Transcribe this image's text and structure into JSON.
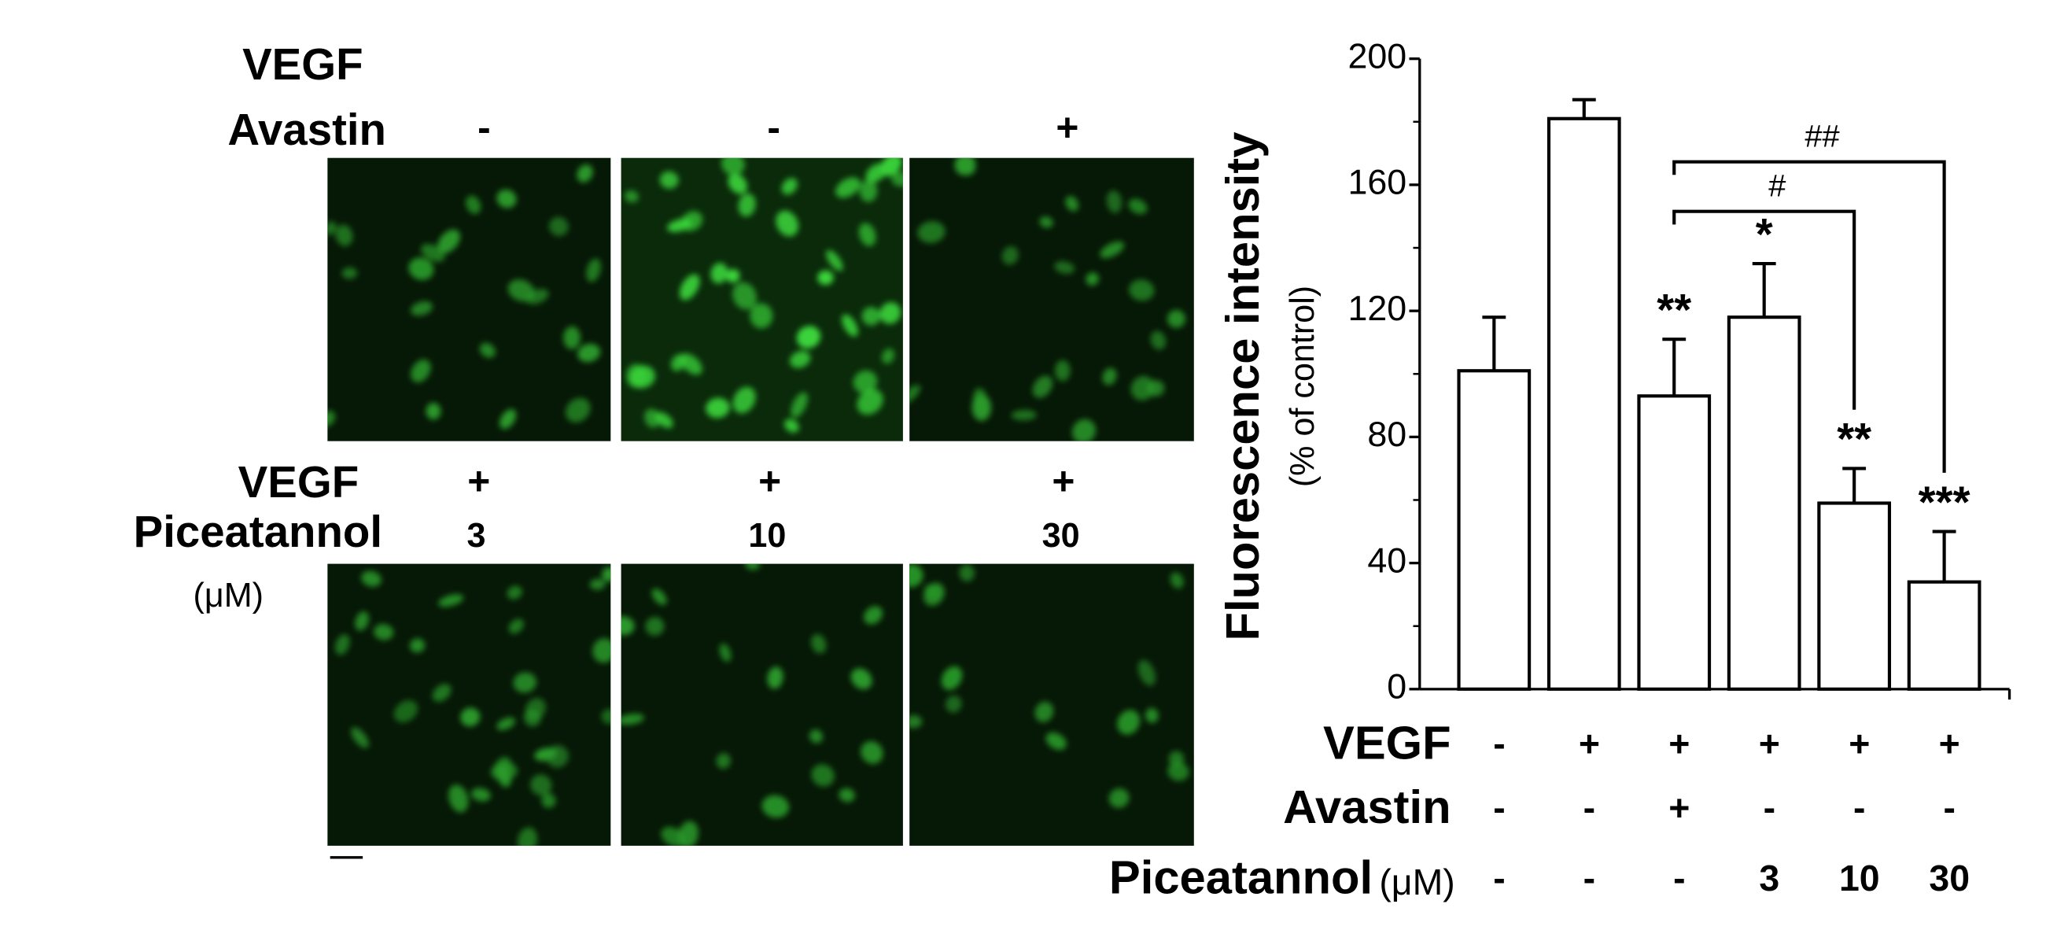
{
  "micrographs": {
    "top_rows": [
      {
        "label": "VEGF"
      },
      {
        "label": "Avastin",
        "values": [
          "-",
          "-",
          "+"
        ]
      }
    ],
    "bottom_rows": [
      {
        "label": "VEGF",
        "values": [
          "+",
          "+",
          "+"
        ]
      },
      {
        "label": "Piceatannol",
        "values": [
          "3",
          "10",
          "30"
        ]
      }
    ],
    "unit": "(μM)"
  },
  "chart_data": {
    "type": "bar",
    "ylabel": "Fluorescence intensity",
    "ylabel_sub": "(% of control)",
    "values": [
      101,
      181,
      93,
      118,
      59,
      34
    ],
    "errors": [
      17,
      6,
      18,
      17,
      11,
      16
    ],
    "significance": [
      null,
      null,
      "**",
      "*",
      "**",
      "***"
    ],
    "comparisons": [
      {
        "from": 2,
        "to": 4,
        "label": "#"
      },
      {
        "from": 2,
        "to": 5,
        "label": "##"
      }
    ],
    "color": "#ffffff",
    "ylim": [
      0,
      200
    ],
    "yticks": [
      0,
      40,
      80,
      120,
      160,
      200
    ],
    "conditions": [
      {
        "name": "VEGF",
        "values": [
          "-",
          "+",
          "+",
          "+",
          "+",
          "+"
        ]
      },
      {
        "name": "Avastin",
        "values": [
          "-",
          "-",
          "+",
          "-",
          "-",
          "-"
        ]
      },
      {
        "name": "Piceatannol",
        "unit": "(μM)",
        "values": [
          "-",
          "-",
          "-",
          "3",
          "10",
          "30"
        ]
      }
    ]
  }
}
